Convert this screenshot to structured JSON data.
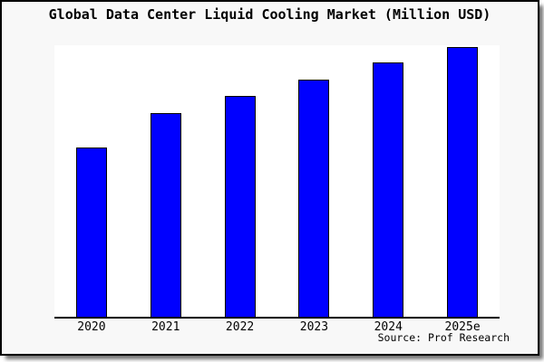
{
  "source": "Source: Prof Research",
  "colors": {
    "bar_fill": "#0000ff",
    "bar_border": "#000000",
    "plot_background": "#ffffff",
    "canvas_background": "#f8f8f8",
    "frame_border": "#000000",
    "axis_line": "#000000",
    "title_text": "#000000"
  },
  "chart_data": {
    "type": "bar",
    "title": "Global Data Center Liquid Cooling Market (Million USD)",
    "categories": [
      "2020",
      "2021",
      "2022",
      "2023",
      "2024",
      "2025e"
    ],
    "values": [
      62.5,
      75.0,
      81.2,
      87.5,
      93.7,
      99.5
    ],
    "xlabel": "",
    "ylabel": "",
    "ylim": [
      0,
      100
    ],
    "grid": false,
    "legend": "none",
    "y_axis_ticks_visible": false,
    "annotations": [
      "Source: Prof Research"
    ]
  }
}
